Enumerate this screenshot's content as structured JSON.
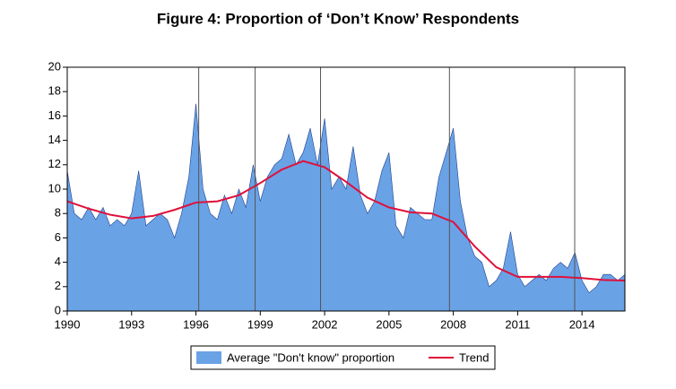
{
  "chart_data": {
    "type": "area",
    "title": "Figure 4: Proportion of ‘Don’t Know’ Respondents",
    "xlim": [
      1990,
      2016
    ],
    "xticks": [
      1990,
      1993,
      1996,
      1999,
      2002,
      2005,
      2008,
      2011,
      2014
    ],
    "ylim": [
      0,
      20
    ],
    "yticks": [
      0,
      2,
      4,
      6,
      8,
      10,
      12,
      14,
      16,
      18,
      20
    ],
    "reference_lines": [
      1996.13,
      1998.76,
      2001.81,
      2007.82,
      2013.66
    ],
    "series": [
      {
        "name": "Average \"Don't know\" proportion",
        "color": "#6aa2e6",
        "kind": "area",
        "x": [
          1990.0,
          1990.33,
          1990.67,
          1991.0,
          1991.33,
          1991.67,
          1992.0,
          1992.33,
          1992.67,
          1993.0,
          1993.33,
          1993.67,
          1994.0,
          1994.33,
          1994.67,
          1995.0,
          1995.33,
          1995.67,
          1996.0,
          1996.33,
          1996.67,
          1997.0,
          1997.33,
          1997.67,
          1998.0,
          1998.33,
          1998.67,
          1999.0,
          1999.33,
          1999.67,
          2000.0,
          2000.33,
          2000.67,
          2001.0,
          2001.33,
          2001.67,
          2002.0,
          2002.33,
          2002.67,
          2003.0,
          2003.33,
          2003.67,
          2004.0,
          2004.33,
          2004.67,
          2005.0,
          2005.33,
          2005.67,
          2006.0,
          2006.33,
          2006.67,
          2007.0,
          2007.33,
          2007.67,
          2008.0,
          2008.33,
          2008.67,
          2009.0,
          2009.33,
          2009.67,
          2010.0,
          2010.33,
          2010.67,
          2011.0,
          2011.33,
          2011.67,
          2012.0,
          2012.33,
          2012.67,
          2013.0,
          2013.33,
          2013.67,
          2014.0,
          2014.33,
          2014.67,
          2015.0,
          2015.33,
          2015.67,
          2016.0
        ],
        "values": [
          11.5,
          8,
          7.5,
          8.5,
          7.5,
          8.5,
          7,
          7.5,
          7,
          8,
          11.5,
          7,
          7.5,
          8,
          7.5,
          6,
          8,
          11,
          17,
          10,
          8,
          7.5,
          9.5,
          8,
          10,
          8.5,
          12,
          9,
          11,
          12,
          12.5,
          14.5,
          12,
          13,
          15,
          12,
          15.8,
          10,
          11,
          10,
          13.5,
          9.5,
          8,
          9,
          11.5,
          13,
          7,
          6,
          8.5,
          8,
          7.5,
          7.5,
          11,
          13,
          15,
          9,
          6,
          4.5,
          4,
          2,
          2.5,
          3.5,
          6.5,
          3,
          2,
          2.5,
          3,
          2.5,
          3.5,
          4,
          3.5,
          4.8,
          2.5,
          1.5,
          2,
          3,
          3,
          2.5,
          3
        ]
      },
      {
        "name": "Trend",
        "color": "#e0103a",
        "kind": "line",
        "x": [
          1990,
          1991,
          1992,
          1993,
          1994,
          1995,
          1996,
          1997,
          1998,
          1999,
          2000,
          2001,
          2002,
          2003,
          2004,
          2005,
          2006,
          2007,
          2008,
          2009,
          2010,
          2011,
          2012,
          2013,
          2014,
          2015,
          2016
        ],
        "values": [
          9,
          8.4,
          7.9,
          7.6,
          7.8,
          8.3,
          8.9,
          9,
          9.5,
          10.5,
          11.6,
          12.3,
          11.8,
          10.6,
          9.3,
          8.5,
          8.1,
          8,
          7.3,
          5.3,
          3.6,
          2.8,
          2.8,
          2.8,
          2.7,
          2.55,
          2.5
        ]
      }
    ]
  }
}
